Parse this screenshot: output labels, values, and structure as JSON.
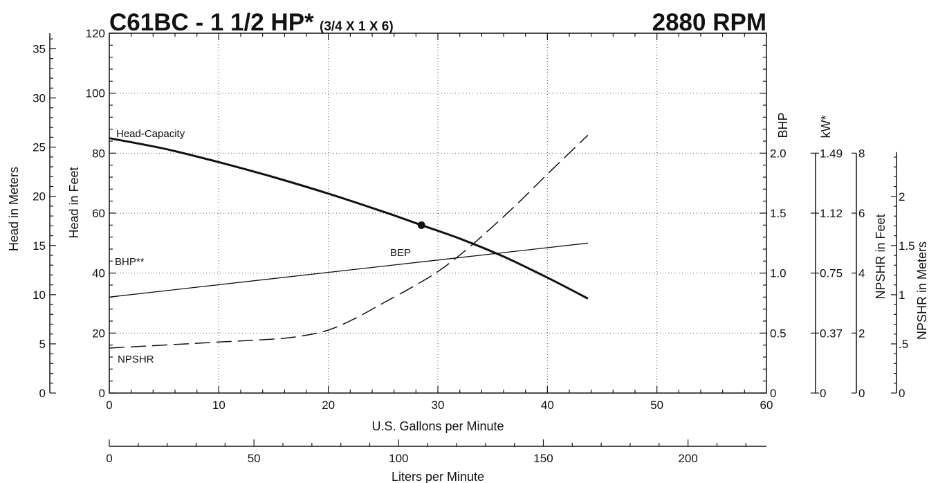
{
  "title": {
    "main": "C61BC - 1 1/2 HP*",
    "sub": "(3/4 X 1 X 6)",
    "rpm": "2880 RPM"
  },
  "chart_data": {
    "type": "line",
    "x_gpm": {
      "label": "U.S. Gallons per Minute",
      "range": [
        0,
        60
      ],
      "ticks": [
        "0",
        "10",
        "20",
        "30",
        "40",
        "50",
        "60"
      ]
    },
    "x_lpm": {
      "label": "Liters per Minute",
      "range": [
        0,
        227.1
      ],
      "ticks": [
        "0",
        "50",
        "100",
        "150",
        "200"
      ]
    },
    "y_feet": {
      "label": "Head in Feet",
      "range": [
        0,
        120
      ],
      "ticks": [
        "0",
        "20",
        "40",
        "60",
        "80",
        "100",
        "120"
      ]
    },
    "y_meters": {
      "label": "Head in Meters",
      "range": [
        0,
        36.58
      ],
      "ticks": [
        "0",
        "5",
        "10",
        "15",
        "20",
        "25",
        "30",
        "35"
      ]
    },
    "y_bhp": {
      "label": "BHP",
      "range": [
        0,
        3.0
      ],
      "ticks": [
        "0",
        "0.5",
        "1.0",
        "1.5",
        "2.0"
      ]
    },
    "y_kw": {
      "label": "kW*",
      "range": [
        0,
        2.24
      ],
      "ticks": [
        {
          "label": "0",
          "bhp": 0
        },
        {
          "label": "0.37",
          "bhp": 0.5
        },
        {
          "label": "0.75",
          "bhp": 1.0
        },
        {
          "label": "1.12",
          "bhp": 1.5
        },
        {
          "label": "1.49",
          "bhp": 2.0
        }
      ]
    },
    "y_npshr_ft": {
      "label": "NPSHR in Feet",
      "range": [
        0,
        12
      ],
      "ticks": [
        "0",
        "2",
        "4",
        "6",
        "8"
      ]
    },
    "y_npshr_m": {
      "label": "NPSHR in Meters",
      "range": [
        0,
        3.66
      ],
      "ticks": [
        "0",
        ".5",
        "1",
        "1.5",
        "2"
      ]
    },
    "series": [
      {
        "name": "Head-Capacity",
        "axis": "feet",
        "x": [
          0,
          5,
          10,
          15,
          20,
          25,
          28.5,
          32,
          36,
          40,
          43.7
        ],
        "y": [
          85,
          81.5,
          77,
          72,
          66.5,
          60.5,
          56,
          51.5,
          45.5,
          38.5,
          31.5
        ]
      },
      {
        "name": "BHP**",
        "axis": "bhp",
        "x": [
          0,
          43.7
        ],
        "y": [
          0.8,
          1.25
        ]
      },
      {
        "name": "NPSHR",
        "axis": "npshr_ft",
        "x": [
          0,
          5,
          10,
          15,
          17.5,
          20,
          22.5,
          25,
          27.5,
          30,
          32.5,
          35,
          37.5,
          40,
          43.7
        ],
        "y": [
          1.5,
          1.6,
          1.7,
          1.8,
          1.9,
          2.1,
          2.5,
          3.0,
          3.5,
          4.05,
          4.75,
          5.55,
          6.4,
          7.3,
          8.6
        ]
      }
    ],
    "annotations": [
      {
        "text": "BEP",
        "x": 28.5,
        "y_feet": 56,
        "marker": true
      }
    ],
    "grid": true
  }
}
